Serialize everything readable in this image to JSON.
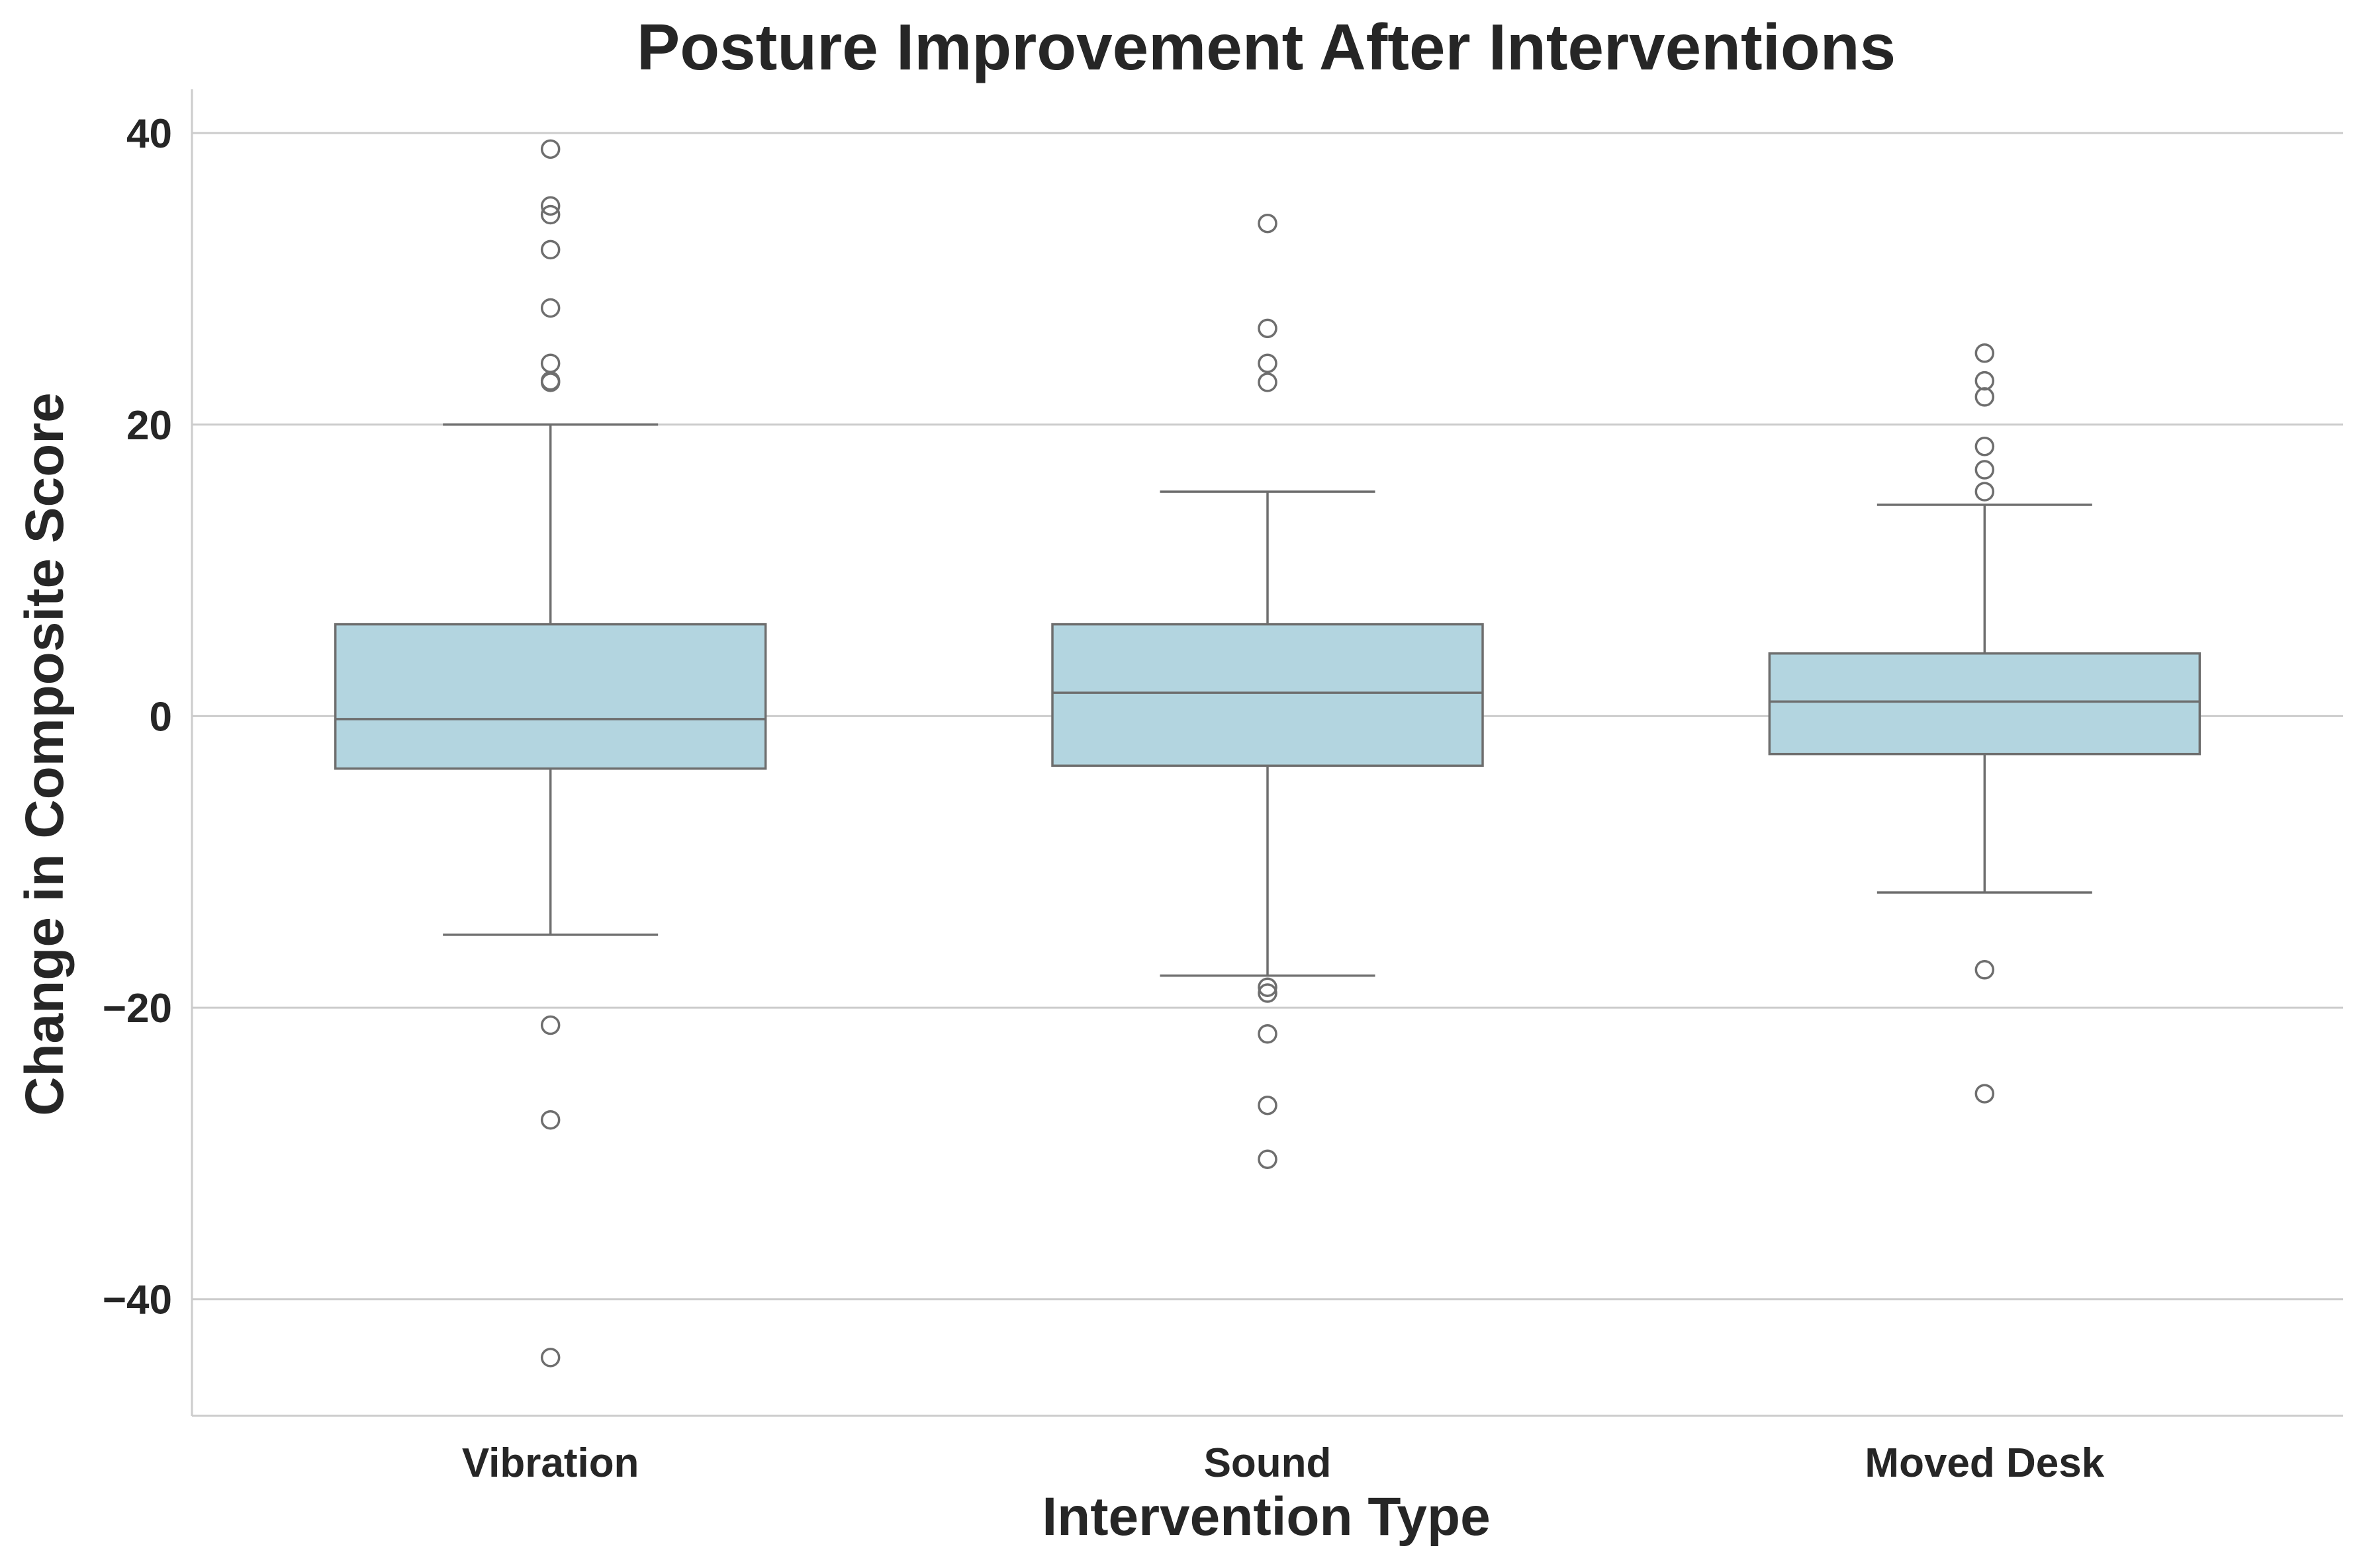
{
  "chart_data": {
    "type": "box",
    "title": "Posture Improvement After Interventions",
    "xlabel": "Intervention Type",
    "ylabel": "Change in Composite Score",
    "ylim": [
      -48,
      43
    ],
    "yticks": [
      40,
      20,
      0,
      -20,
      -40
    ],
    "ytick_labels": [
      "40",
      "20",
      "0",
      "−20",
      "−40"
    ],
    "grid": "horizontal",
    "colors": {
      "box_fill": "#b3d5e0",
      "stroke": "#6e6e6e",
      "grid": "#cccccc",
      "text": "#262626"
    },
    "categories": [
      "Vibration",
      "Sound",
      "Moved Desk"
    ],
    "boxes": [
      {
        "category": "Vibration",
        "whisker_low": -15.0,
        "q1": -3.6,
        "median": -0.2,
        "q3": 6.3,
        "whisker_high": 20.0,
        "outliers": [
          38.9,
          35.0,
          34.4,
          32.0,
          28.0,
          24.2,
          23.0,
          22.9,
          -21.2,
          -27.7,
          -44.0
        ]
      },
      {
        "category": "Sound",
        "whisker_low": -17.8,
        "q1": -3.4,
        "median": 1.6,
        "q3": 6.3,
        "whisker_high": 15.4,
        "outliers": [
          33.8,
          26.6,
          24.2,
          22.9,
          -18.6,
          -19.0,
          -21.8,
          -26.7,
          -30.4
        ]
      },
      {
        "category": "Moved Desk",
        "whisker_low": -12.1,
        "q1": -2.6,
        "median": 1.0,
        "q3": 4.3,
        "whisker_high": 14.5,
        "outliers": [
          24.9,
          23.0,
          21.9,
          18.5,
          16.9,
          15.4,
          -17.4,
          -25.9
        ]
      }
    ]
  }
}
